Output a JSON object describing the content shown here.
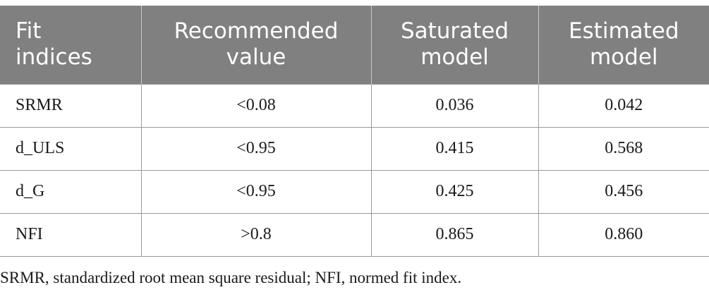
{
  "table": {
    "headers": [
      [
        "Fit",
        "indices"
      ],
      [
        "Recommended",
        "value"
      ],
      [
        "Saturated",
        "model"
      ],
      [
        "Estimated",
        "model"
      ]
    ],
    "rows": [
      [
        "SRMR",
        "<0.08",
        "0.036",
        "0.042"
      ],
      [
        "d_ULS",
        "<0.95",
        "0.415",
        "0.568"
      ],
      [
        "d_G",
        "<0.95",
        "0.425",
        "0.456"
      ],
      [
        "NFI",
        ">0.8",
        "0.865",
        "0.860"
      ]
    ],
    "header_color": "#808080"
  },
  "footnote": "SRMR, standardized root mean square residual; NFI, normed fit index."
}
